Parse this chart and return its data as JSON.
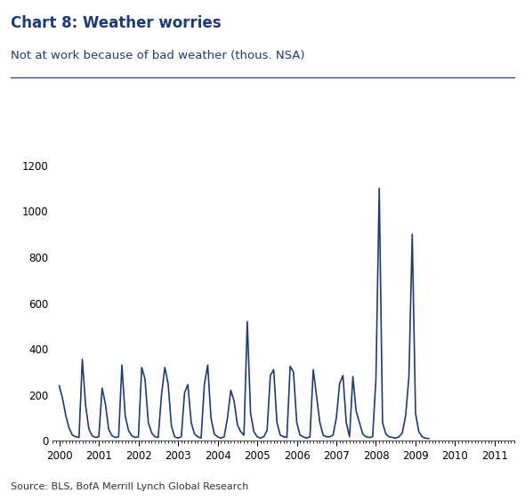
{
  "title_bold": "Chart 8: Weather worries",
  "title_normal": "Not at work because of bad weather (thous. NSA)",
  "source": "Source: BLS, BofA Merrill Lynch Global Research",
  "line_color": "#1f3a7a",
  "background_color": "#ffffff",
  "title_color": "#1f3a7a",
  "ylim": [
    0,
    1200
  ],
  "yticks": [
    0,
    200,
    400,
    600,
    800,
    1000,
    1200
  ],
  "xtick_labels": [
    "2000",
    "2001",
    "2002",
    "2003",
    "2004",
    "2005",
    "2006",
    "2007",
    "2008",
    "2009",
    "2010",
    "2011"
  ],
  "values": [
    240,
    185,
    110,
    55,
    25,
    18,
    15,
    355,
    155,
    50,
    22,
    15,
    18,
    230,
    160,
    50,
    22,
    15,
    18,
    330,
    110,
    45,
    22,
    15,
    18,
    320,
    270,
    80,
    35,
    18,
    15,
    200,
    320,
    250,
    65,
    18,
    12,
    18,
    210,
    245,
    80,
    30,
    18,
    12,
    245,
    330,
    100,
    30,
    18,
    12,
    18,
    100,
    220,
    175,
    70,
    40,
    25,
    520,
    120,
    40,
    18,
    12,
    18,
    45,
    285,
    310,
    80,
    25,
    18,
    15,
    325,
    300,
    80,
    25,
    18,
    12,
    18,
    310,
    195,
    80,
    25,
    18,
    18,
    25,
    100,
    250,
    285,
    80,
    18,
    280,
    130,
    80,
    30,
    18,
    15,
    18,
    270,
    1100,
    80,
    30,
    18,
    15,
    12,
    18,
    35,
    110,
    280,
    900,
    120,
    40,
    18,
    12,
    10
  ]
}
